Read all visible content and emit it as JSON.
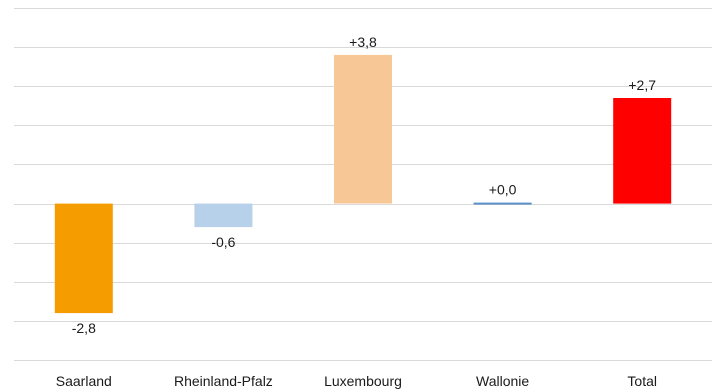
{
  "chart_data": {
    "type": "bar",
    "title": "",
    "xlabel": "",
    "ylabel": "",
    "categories": [
      "Saarland",
      "Rheinland-Pfalz",
      "Luxembourg",
      "Wallonie",
      "Total"
    ],
    "values": [
      -2.8,
      -0.6,
      3.8,
      0.0,
      2.7
    ],
    "data_labels": [
      "-2,8",
      "-0,6",
      "+3,8",
      "+0,0",
      "+2,7"
    ],
    "colors": [
      "#f59c00",
      "#b8d1ea",
      "#f7c896",
      "#5b8fc9",
      "#ff0000"
    ],
    "ylim": [
      -4.0,
      5.0
    ],
    "y_gridlines": [
      5.0,
      4.0,
      3.0,
      2.0,
      1.0,
      0.0,
      -1.0,
      -2.0,
      -3.0,
      -4.0
    ],
    "grid": true,
    "legend": "none"
  }
}
